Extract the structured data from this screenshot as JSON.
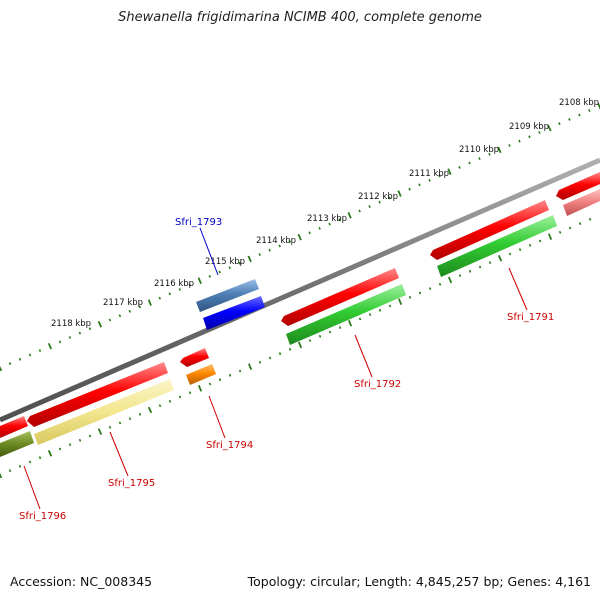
{
  "title": "Shewanella frigidimarina NCIMB 400, complete genome",
  "footer": {
    "accession": "Accession: NC_008345",
    "summary": "Topology: circular; Length: 4,845,257 bp; Genes: 4,161"
  },
  "ticks": [
    "2108 kbp",
    "2109 kbp",
    "2110 kbp",
    "2111 kbp",
    "2112 kbp",
    "2113 kbp",
    "2114 kbp",
    "2115 kbp",
    "2116 kbp",
    "2117 kbp",
    "2118 kbp"
  ],
  "genes": [
    {
      "id": "Sfri_1791",
      "color": "#cc0000"
    },
    {
      "id": "Sfri_1792",
      "color": "#cc0000"
    },
    {
      "id": "Sfri_1793",
      "color": "#0000cc"
    },
    {
      "id": "Sfri_1794",
      "color": "#cc0000"
    },
    {
      "id": "Sfri_1795",
      "color": "#cc0000"
    },
    {
      "id": "Sfri_1796",
      "color": "#cc0000"
    }
  ],
  "colors": {
    "backbone": "#808080",
    "tick": "#2a7a1a",
    "cds": "#ff0000",
    "trna_blue": "#0000ff",
    "steel_blue": "#4f7fb5",
    "green": "#33cc33",
    "orange": "#ff8800",
    "pale_yellow": "#f2e68e",
    "olive": "#6b8a23",
    "pink": "#f08080"
  }
}
